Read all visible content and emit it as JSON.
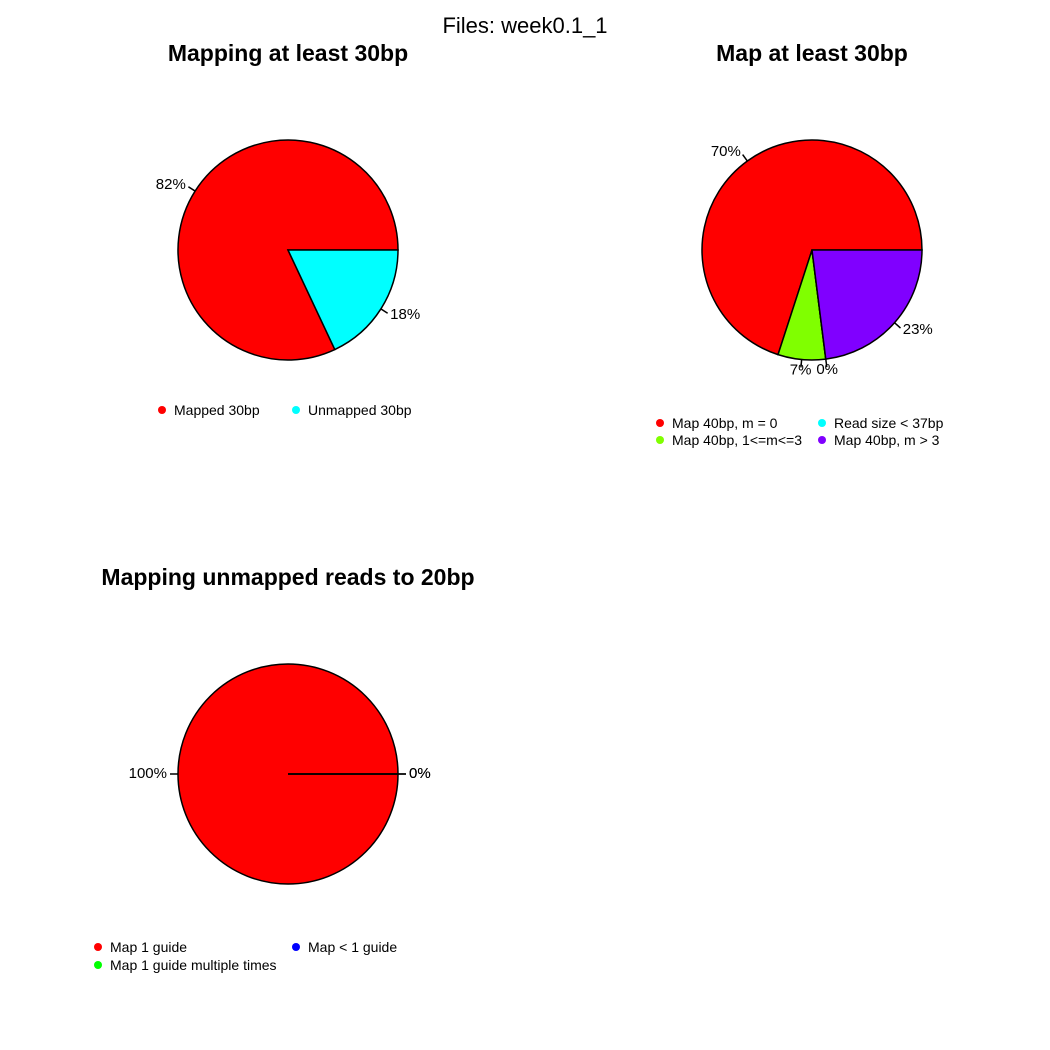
{
  "page_title": "Files: week0.1_1",
  "chart_data": [
    {
      "type": "pie",
      "title": "Mapping at least 30bp",
      "slices": [
        {
          "name": "Mapped 30bp",
          "value": 82,
          "label": "82%",
          "color": "#ff0000"
        },
        {
          "name": "Unmapped 30bp",
          "value": 18,
          "label": "18%",
          "color": "#00ffff"
        }
      ],
      "legend_placement": "bottom"
    },
    {
      "type": "pie",
      "title": "Map at least 30bp",
      "slices": [
        {
          "name": "Map 40bp, m = 0",
          "value": 70,
          "label": "70%",
          "color": "#ff0000"
        },
        {
          "name": "Map 40bp, 1<=m<=3",
          "value": 7,
          "label": "7%",
          "color": "#80ff00"
        },
        {
          "name": "Read size < 37bp",
          "value": 0,
          "label": "0%",
          "color": "#00ffff"
        },
        {
          "name": "Map 40bp, m > 3",
          "value": 23,
          "label": "23%",
          "color": "#8000ff"
        }
      ],
      "legend_placement": "bottom"
    },
    {
      "type": "pie",
      "title": "Mapping unmapped reads to 20bp",
      "slices": [
        {
          "name": "Map 1 guide",
          "value": 100,
          "label": "100%",
          "color": "#ff0000"
        },
        {
          "name": "Map 1 guide multiple times",
          "value": 0,
          "label": "0%",
          "color": "#00ff00"
        },
        {
          "name": "Map < 1 guide",
          "value": 0,
          "label": "0%",
          "color": "#0000ff"
        }
      ],
      "legend_placement": "bottom"
    }
  ]
}
